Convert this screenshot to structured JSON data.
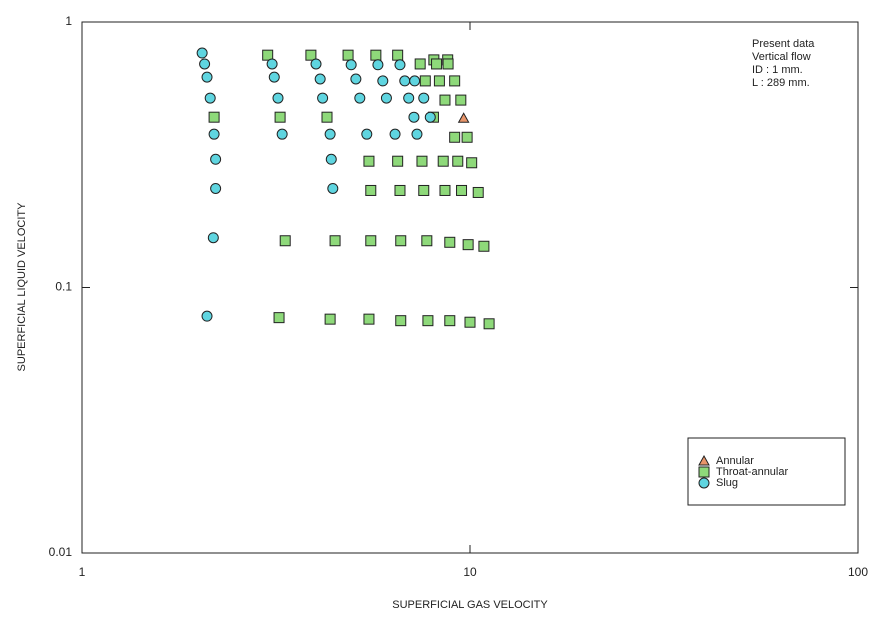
{
  "chart_data": {
    "type": "scatter",
    "x_label": "SUPERFICIAL GAS VELOCITY",
    "y_label": "SUPERFICIAL LIQUID VELOCITY",
    "annotation": [
      "Present data",
      "Vertical flow",
      "ID : 1 mm.",
      "L : 289 mm."
    ],
    "xscale": "log",
    "yscale": "log",
    "xlim": [
      1,
      100
    ],
    "ylim": [
      0.01,
      1
    ],
    "xticks": [
      1,
      10,
      100
    ],
    "yticks": [
      0.01,
      0.1,
      1
    ],
    "legend": "lower right",
    "series": [
      {
        "name": "Annular",
        "marker": "triangle",
        "color": "#e8956a",
        "x": [
          9.63
        ],
        "values": [
          0.434
        ]
      },
      {
        "name": "Throat-annular",
        "marker": "square",
        "color": "#8ed97a",
        "x": [
          3.01,
          3.89,
          4.85,
          5.72,
          6.51,
          8.07,
          8.76,
          7.44,
          8.2,
          8.78,
          7.67,
          8.34,
          9.13,
          8.62,
          9.47,
          2.19,
          3.24,
          4.28,
          8.05,
          9.13,
          9.83,
          5.49,
          6.51,
          7.52,
          8.53,
          9.3,
          10.1,
          5.55,
          6.6,
          7.6,
          8.62,
          9.51,
          10.5,
          3.34,
          4.49,
          5.55,
          6.63,
          7.74,
          8.87,
          9.89,
          10.86,
          3.22,
          4.36,
          5.49,
          6.63,
          7.79,
          8.87,
          10.0,
          11.2
        ],
        "values": [
          0.75,
          0.75,
          0.75,
          0.75,
          0.75,
          0.72,
          0.72,
          0.695,
          0.695,
          0.695,
          0.6,
          0.6,
          0.6,
          0.508,
          0.508,
          0.438,
          0.438,
          0.438,
          0.438,
          0.368,
          0.368,
          0.299,
          0.299,
          0.299,
          0.299,
          0.299,
          0.295,
          0.232,
          0.232,
          0.232,
          0.232,
          0.232,
          0.228,
          0.15,
          0.15,
          0.15,
          0.15,
          0.15,
          0.148,
          0.145,
          0.143,
          0.077,
          0.076,
          0.076,
          0.075,
          0.075,
          0.075,
          0.074,
          0.073
        ]
      },
      {
        "name": "Slug",
        "marker": "circle",
        "color": "#5fd5e0",
        "x": [
          2.04,
          2.07,
          2.1,
          2.14,
          2.19,
          2.21,
          2.21,
          2.18,
          2.1,
          3.09,
          3.13,
          3.2,
          3.28,
          4.01,
          4.11,
          4.17,
          4.36,
          4.39,
          4.43,
          4.94,
          5.08,
          5.2,
          5.42,
          5.79,
          5.96,
          6.09,
          6.41,
          6.6,
          6.79,
          6.95,
          7.17,
          7.3,
          7.2,
          7.6,
          7.9
        ],
        "values": [
          0.764,
          0.695,
          0.62,
          0.517,
          0.378,
          0.304,
          0.236,
          0.154,
          0.078,
          0.695,
          0.62,
          0.517,
          0.378,
          0.695,
          0.61,
          0.517,
          0.378,
          0.304,
          0.236,
          0.69,
          0.61,
          0.517,
          0.378,
          0.69,
          0.6,
          0.517,
          0.378,
          0.69,
          0.6,
          0.517,
          0.438,
          0.378,
          0.6,
          0.517,
          0.438
        ]
      }
    ]
  }
}
